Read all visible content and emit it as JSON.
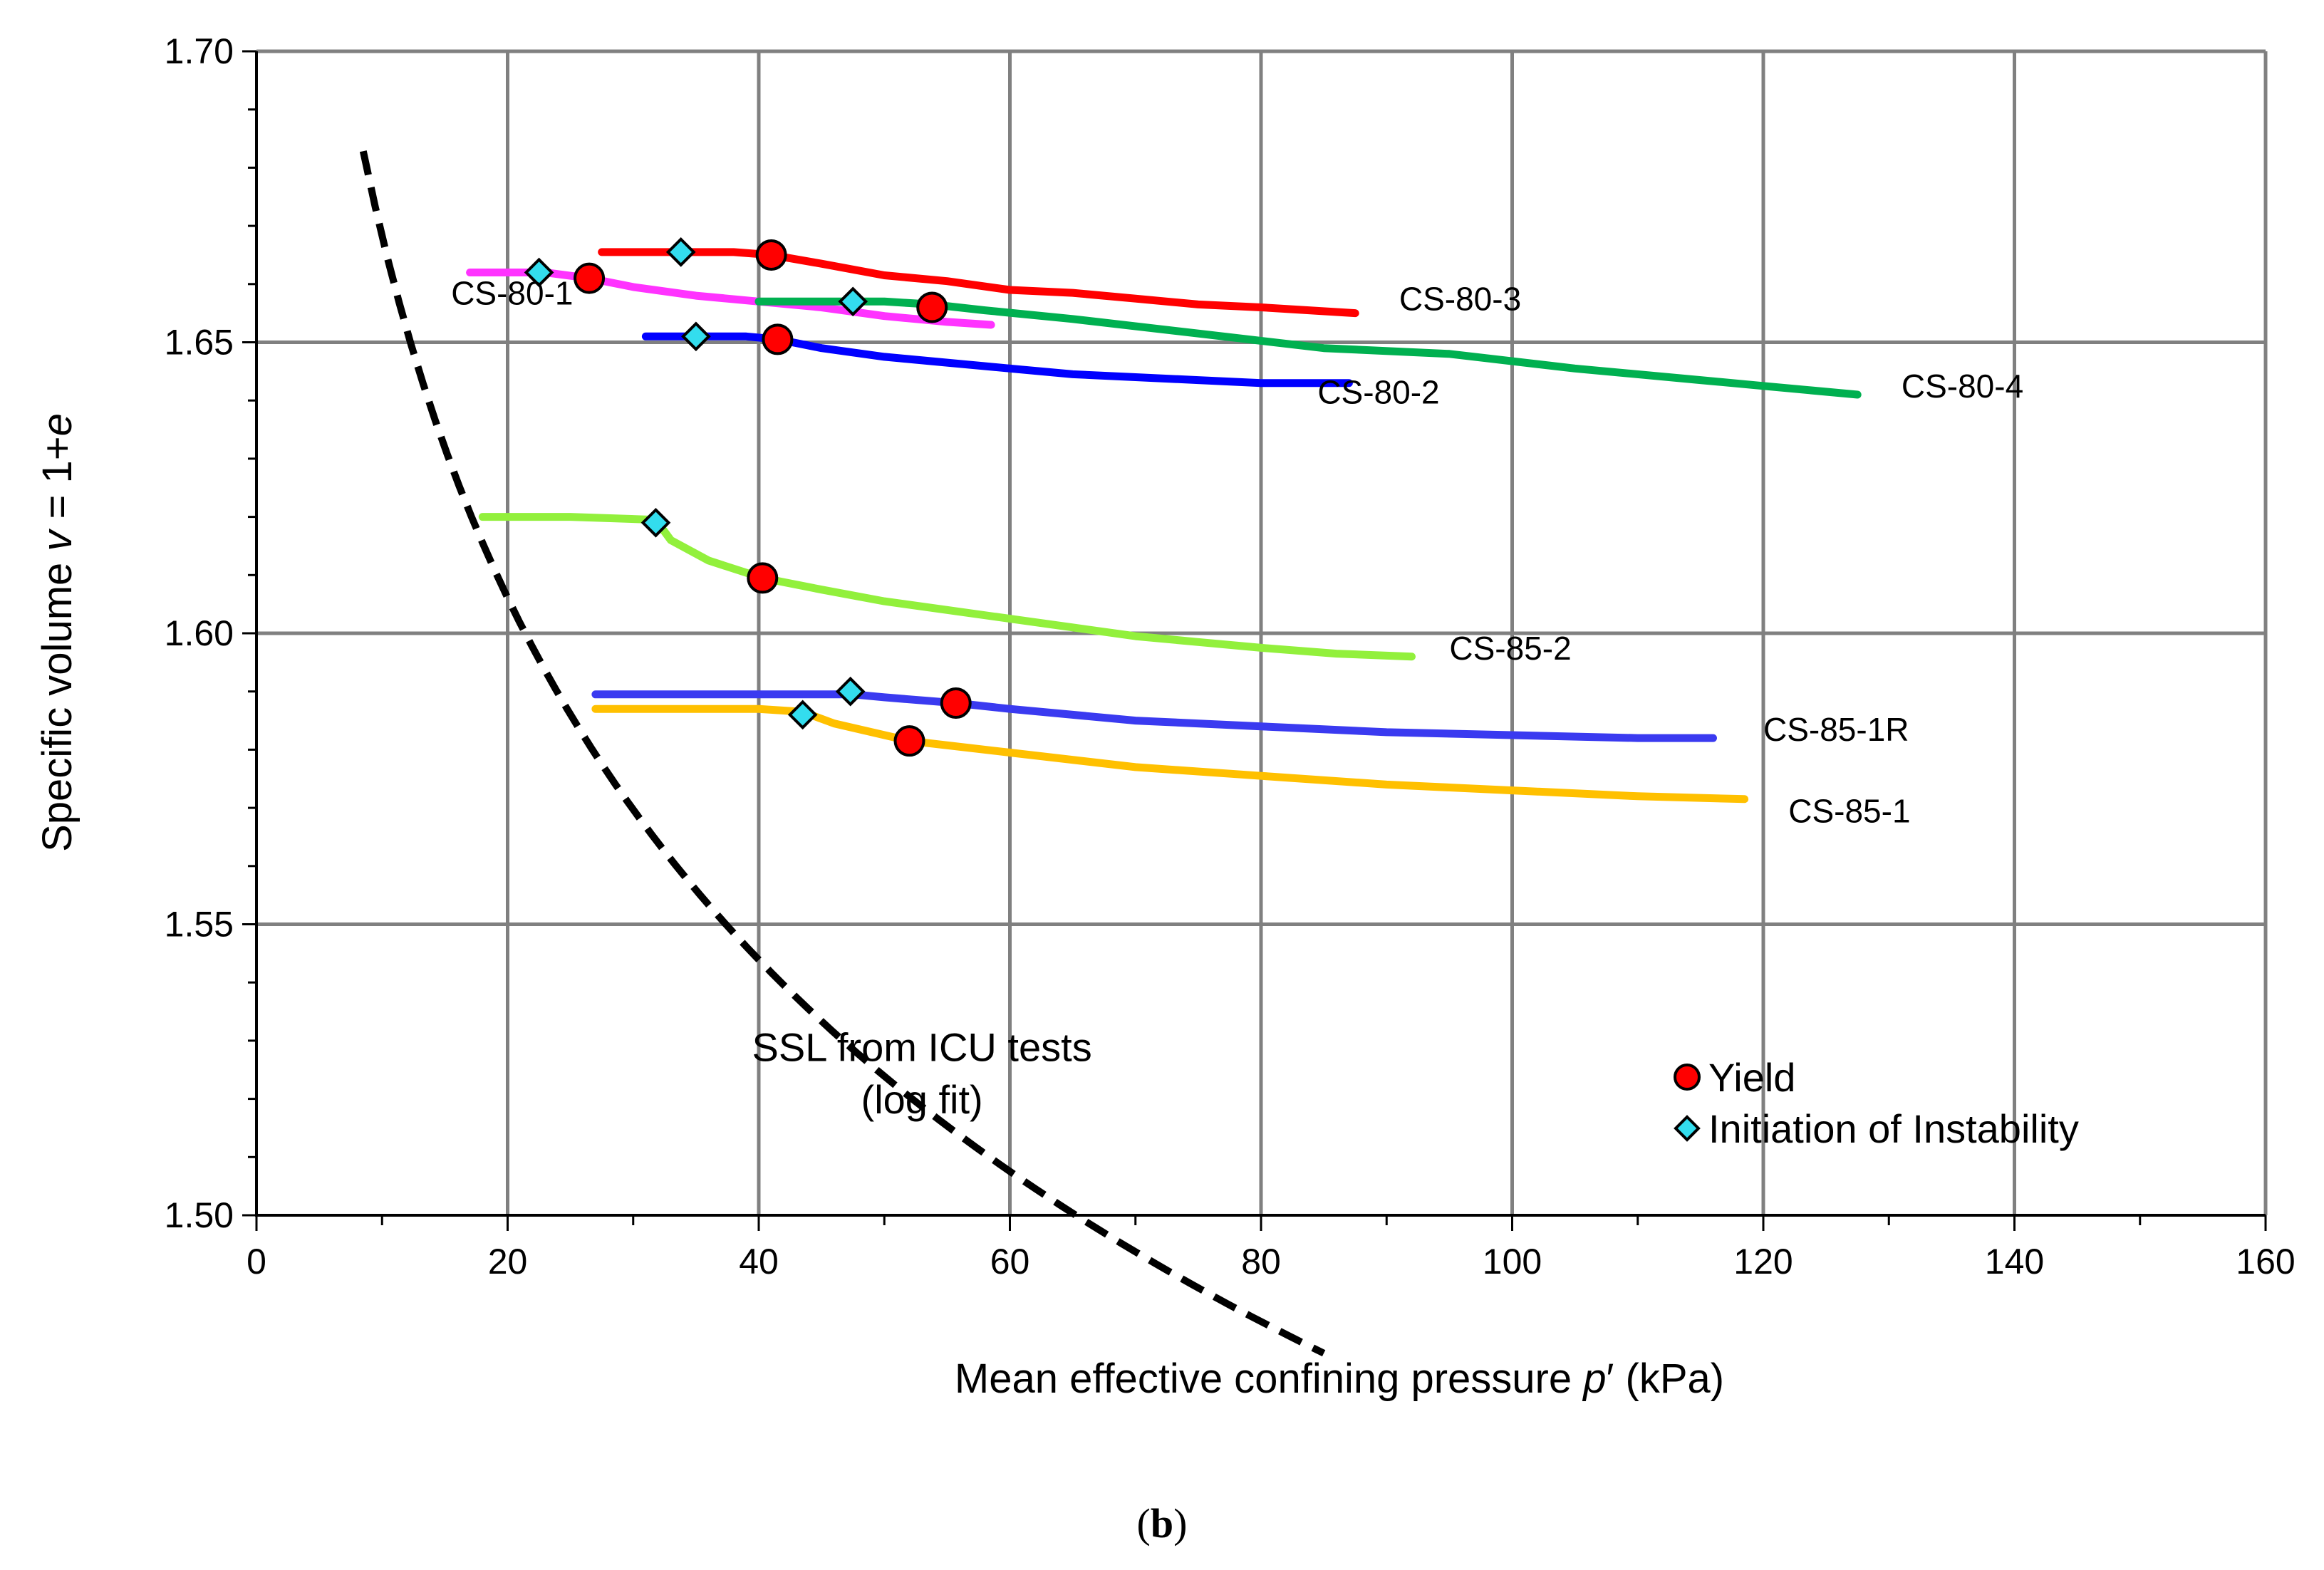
{
  "chart_data": {
    "type": "scatter",
    "title": "",
    "caption": {
      "open": "(",
      "letter": "b",
      "close": ")"
    },
    "xlabel": {
      "prefix": "Mean effective confining pressure  ",
      "symbol": "p",
      "suffix": "′ (kPa)"
    },
    "ylabel": {
      "prefix": "Specific volume ",
      "symbol": "v",
      "middle": " =  1+",
      "symbol2": "e"
    },
    "xlim": [
      0,
      160
    ],
    "ylim": [
      1.5,
      1.7
    ],
    "xticks": [
      0,
      20,
      40,
      60,
      80,
      100,
      120,
      140,
      160
    ],
    "xtick_labels": [
      "0",
      "20",
      "40",
      "60",
      "80",
      "100",
      "120",
      "140",
      "160"
    ],
    "yticks": [
      1.5,
      1.55,
      1.6,
      1.65,
      1.7
    ],
    "ytick_labels": [
      "1.50",
      "1.55",
      "1.60",
      "1.65",
      "1.70"
    ],
    "y_minor_step": 0.01,
    "x_minor_step": 10,
    "grid": true,
    "series": [
      {
        "name": "CS-80-3",
        "color": "#ff0000",
        "points": [
          [
            27.5,
            1.6655
          ],
          [
            33,
            1.6655
          ],
          [
            38,
            1.6655
          ],
          [
            41,
            1.665
          ],
          [
            45,
            1.6635
          ],
          [
            50,
            1.6615
          ],
          [
            55,
            1.6605
          ],
          [
            60,
            1.659
          ],
          [
            65,
            1.6585
          ],
          [
            70,
            1.6575
          ],
          [
            75,
            1.6565
          ],
          [
            80,
            1.656
          ],
          [
            87.5,
            1.655
          ]
        ]
      },
      {
        "name": "CS-80-1",
        "color": "#ff33ff",
        "points": [
          [
            17,
            1.662
          ],
          [
            20,
            1.662
          ],
          [
            23,
            1.662
          ],
          [
            26.5,
            1.661
          ],
          [
            30,
            1.6595
          ],
          [
            35,
            1.658
          ],
          [
            40,
            1.657
          ],
          [
            45,
            1.656
          ],
          [
            50,
            1.6545
          ],
          [
            55,
            1.6535
          ],
          [
            58.5,
            1.653
          ]
        ]
      },
      {
        "name": "CS-80-4",
        "color": "#00b050",
        "points": [
          [
            40,
            1.657
          ],
          [
            44,
            1.657
          ],
          [
            47.5,
            1.657
          ],
          [
            50,
            1.657
          ],
          [
            53.8,
            1.6565
          ],
          [
            58,
            1.6555
          ],
          [
            65,
            1.654
          ],
          [
            75,
            1.6515
          ],
          [
            85,
            1.649
          ],
          [
            95,
            1.648
          ],
          [
            105,
            1.6455
          ],
          [
            115,
            1.6435
          ],
          [
            120,
            1.6425
          ],
          [
            127.5,
            1.641
          ]
        ]
      },
      {
        "name": "CS-80-2",
        "color": "#0000ff",
        "points": [
          [
            31,
            1.651
          ],
          [
            35,
            1.651
          ],
          [
            39,
            1.651
          ],
          [
            41.5,
            1.6505
          ],
          [
            45,
            1.649
          ],
          [
            50,
            1.6475
          ],
          [
            55,
            1.6465
          ],
          [
            60,
            1.6455
          ],
          [
            65,
            1.6445
          ],
          [
            70,
            1.644
          ],
          [
            75,
            1.6435
          ],
          [
            80,
            1.643
          ],
          [
            87,
            1.643
          ]
        ]
      },
      {
        "name": "CS-85-2",
        "color": "#92f03c",
        "points": [
          [
            18,
            1.62
          ],
          [
            25,
            1.62
          ],
          [
            31.8,
            1.6195
          ],
          [
            33,
            1.616
          ],
          [
            36,
            1.6125
          ],
          [
            40.3,
            1.6095
          ],
          [
            45,
            1.6075
          ],
          [
            50,
            1.6055
          ],
          [
            55,
            1.604
          ],
          [
            60,
            1.6025
          ],
          [
            65,
            1.601
          ],
          [
            70,
            1.5995
          ],
          [
            75,
            1.5985
          ],
          [
            80,
            1.5975
          ],
          [
            86,
            1.5965
          ],
          [
            92,
            1.596
          ]
        ]
      },
      {
        "name": "CS-85-1R",
        "color": "#3a3af0",
        "points": [
          [
            27,
            1.5895
          ],
          [
            35,
            1.5895
          ],
          [
            40,
            1.5895
          ],
          [
            45,
            1.5895
          ],
          [
            47.5,
            1.5895
          ],
          [
            50,
            1.589
          ],
          [
            55.7,
            1.588
          ],
          [
            60,
            1.587
          ],
          [
            65,
            1.586
          ],
          [
            70,
            1.585
          ],
          [
            80,
            1.584
          ],
          [
            90,
            1.583
          ],
          [
            100,
            1.5825
          ],
          [
            110,
            1.582
          ],
          [
            116,
            1.582
          ]
        ]
      },
      {
        "name": "CS-85-1",
        "color": "#ffc000",
        "points": [
          [
            27,
            1.587
          ],
          [
            35,
            1.587
          ],
          [
            40,
            1.587
          ],
          [
            43.5,
            1.5865
          ],
          [
            46,
            1.5845
          ],
          [
            52,
            1.5815
          ],
          [
            60,
            1.5795
          ],
          [
            70,
            1.577
          ],
          [
            80,
            1.5755
          ],
          [
            90,
            1.574
          ],
          [
            100,
            1.573
          ],
          [
            110,
            1.572
          ],
          [
            118.5,
            1.5715
          ]
        ]
      }
    ],
    "ssl": {
      "name": "SSL from ICU tests (log fit)",
      "color": "#000000",
      "style": "dashed",
      "x_start": 8.5,
      "x_end": 85,
      "fit": {
        "a": 1.8748,
        "b": -0.0897,
        "form": "v = a + b*ln(p')"
      }
    },
    "yield_points": [
      [
        26.5,
        1.661
      ],
      [
        41,
        1.665
      ],
      [
        41.5,
        1.6505
      ],
      [
        53.8,
        1.656
      ],
      [
        40.3,
        1.6095
      ],
      [
        55.7,
        1.588
      ],
      [
        52,
        1.5815
      ]
    ],
    "instability_points": [
      [
        22.5,
        1.662
      ],
      [
        33.8,
        1.6655
      ],
      [
        35,
        1.651
      ],
      [
        47.5,
        1.657
      ],
      [
        31.8,
        1.619
      ],
      [
        47.3,
        1.59
      ],
      [
        43.5,
        1.586
      ]
    ],
    "series_labels": [
      {
        "text": "CS-80-3",
        "x": 91,
        "y": 1.6555
      },
      {
        "text": "CS-80-1",
        "x": 15.5,
        "y": 1.6565
      },
      {
        "text": "CS-80-4",
        "x": 131,
        "y": 1.6405
      },
      {
        "text": "CS-80-2",
        "x": 84.5,
        "y": 1.6395
      },
      {
        "text": "CS-85-2",
        "x": 95,
        "y": 1.5955
      },
      {
        "text": "CS-85-1R",
        "x": 120,
        "y": 1.5815
      },
      {
        "text": "CS-85-1",
        "x": 122,
        "y": 1.5675
      }
    ],
    "annotation": {
      "line1": "SSL from ICU tests",
      "line2": "(log fit)",
      "x": 53,
      "y1": 1.5265,
      "y2": 1.5175
    },
    "legend": {
      "position": "bottom-right",
      "yield": "Yield",
      "instability": "Initiation of Instability"
    },
    "colors": {
      "yield_fill": "#ff0000",
      "instability_fill": "#33ddee",
      "grid": "#808080",
      "marker_edge": "#000000"
    }
  }
}
